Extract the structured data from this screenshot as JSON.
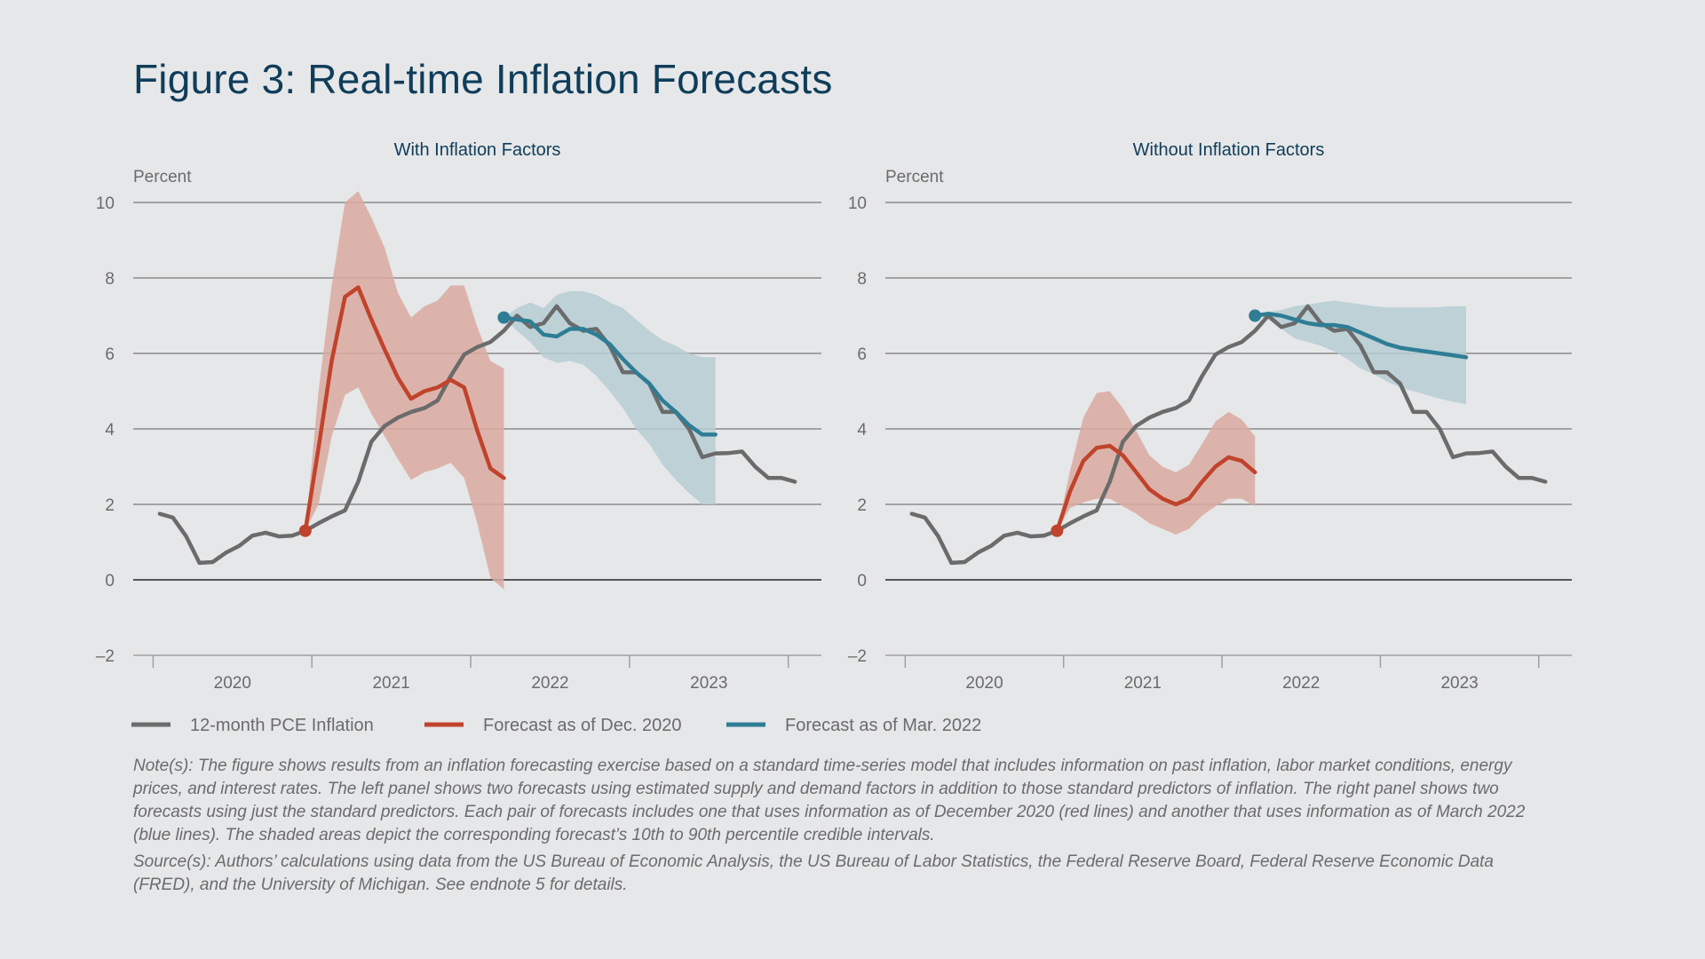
{
  "title": "Figure 3: Real-time Inflation Forecasts",
  "legend": {
    "pce": "12-month PCE Inflation",
    "dec2020": "Forecast as of Dec. 2020",
    "mar2022": "Forecast as of Mar. 2022"
  },
  "notes": {
    "note": "Note(s): The figure shows results from an inflation forecasting exercise based on a standard time-series model that includes information on past inflation, labor market conditions, energy prices, and interest rates. The left panel shows two forecasts using estimated supply and demand factors in addition to those standard predictors of inflation. The right panel shows two forecasts using just the standard predictors. Each pair of forecasts includes one that uses information as of December 2020 (red lines) and another that uses information as of March 2022 (blue lines). The shaded areas depict the corresponding forecast’s 10th to 90th percentile credible intervals.",
    "source": "Source(s): Authors’ calculations using data from the US Bureau of Economic Analysis, the US Bureau of Labor Statistics, the Federal Reserve Board, Federal Reserve Economic Data (FRED), and the University of Michigan. See endnote 5 for details."
  },
  "colors": {
    "pce": "#6b6b6b",
    "dec2020": "#c0432c",
    "dec2020_band": "#d9a9a0",
    "mar2022": "#2e7d95",
    "mar2022_band": "#b5ccd4",
    "grid": "#8c8c8c",
    "zero": "#555555"
  },
  "chart_data": [
    {
      "type": "line",
      "title": "With Inflation Factors",
      "ylabel": "Percent",
      "ylim": [
        -2,
        10
      ],
      "yticks": [
        10,
        8,
        6,
        4,
        2,
        0,
        -2
      ],
      "ytick_labels": [
        "10",
        "8",
        "6",
        "4",
        "2",
        "0",
        "–2"
      ],
      "xlim": [
        2019.833,
        2024.167
      ],
      "year_labels": [
        "2020",
        "2021",
        "2022",
        "2023"
      ],
      "series": [
        {
          "name": "12-month PCE Inflation",
          "color": "#6b6b6b",
          "x": [
            2020.0,
            2020.083,
            2020.167,
            2020.25,
            2020.333,
            2020.417,
            2020.5,
            2020.583,
            2020.667,
            2020.75,
            2020.833,
            2020.917,
            2021.0,
            2021.083,
            2021.167,
            2021.25,
            2021.333,
            2021.417,
            2021.5,
            2021.583,
            2021.667,
            2021.75,
            2021.833,
            2021.917,
            2022.0,
            2022.083,
            2022.167,
            2022.25,
            2022.333,
            2022.417,
            2022.5,
            2022.583,
            2022.667,
            2022.75,
            2022.833,
            2022.917,
            2023.0,
            2023.083,
            2023.167,
            2023.25,
            2023.333,
            2023.417,
            2023.5,
            2023.583,
            2023.667,
            2023.75,
            2023.833,
            2023.917,
            2024.0
          ],
          "y": [
            1.75,
            1.65,
            1.15,
            0.45,
            0.47,
            0.72,
            0.9,
            1.17,
            1.25,
            1.15,
            1.17,
            1.3,
            1.5,
            1.68,
            1.84,
            2.6,
            3.66,
            4.08,
            4.3,
            4.45,
            4.55,
            4.75,
            5.4,
            5.97,
            6.17,
            6.3,
            6.6,
            7.0,
            6.7,
            6.8,
            7.25,
            6.8,
            6.6,
            6.65,
            6.2,
            5.5,
            5.5,
            5.2,
            4.45,
            4.45,
            4.0,
            3.25,
            3.35,
            3.36,
            3.4,
            3.0,
            2.7,
            2.7,
            2.6
          ]
        },
        {
          "name": "Forecast as of Dec. 2020",
          "color": "#c0432c",
          "x": [
            2020.917,
            2021.0,
            2021.083,
            2021.167,
            2021.25,
            2021.333,
            2021.417,
            2021.5,
            2021.583,
            2021.667,
            2021.75,
            2021.833,
            2021.917,
            2022.0,
            2022.083,
            2022.167
          ],
          "y": [
            1.3,
            3.5,
            5.8,
            7.5,
            7.75,
            6.9,
            6.1,
            5.35,
            4.8,
            5.0,
            5.1,
            5.3,
            5.1,
            3.95,
            2.95,
            2.7
          ],
          "band_upper": [
            1.3,
            5.0,
            7.8,
            10.0,
            10.3,
            9.6,
            8.8,
            7.6,
            6.95,
            7.25,
            7.4,
            7.8,
            7.8,
            6.7,
            5.8,
            5.6
          ],
          "band_lower": [
            1.3,
            2.0,
            3.8,
            4.9,
            5.1,
            4.4,
            3.8,
            3.2,
            2.65,
            2.85,
            2.95,
            3.1,
            2.7,
            1.5,
            0.05,
            -0.25
          ]
        },
        {
          "name": "Forecast as of Mar. 2022",
          "color": "#2e7d95",
          "x": [
            2022.167,
            2022.25,
            2022.333,
            2022.417,
            2022.5,
            2022.583,
            2022.667,
            2022.75,
            2022.833,
            2022.917,
            2023.0,
            2023.083,
            2023.167,
            2023.25,
            2023.333,
            2023.417,
            2023.5
          ],
          "y": [
            6.95,
            6.9,
            6.85,
            6.5,
            6.45,
            6.65,
            6.65,
            6.5,
            6.25,
            5.85,
            5.5,
            5.2,
            4.75,
            4.45,
            4.1,
            3.85,
            3.85
          ],
          "band_upper": [
            6.95,
            7.2,
            7.35,
            7.2,
            7.55,
            7.65,
            7.65,
            7.55,
            7.35,
            7.2,
            6.9,
            6.6,
            6.35,
            6.2,
            6.0,
            5.9,
            5.9
          ],
          "band_lower": [
            6.95,
            6.6,
            6.3,
            5.9,
            5.75,
            5.8,
            5.7,
            5.4,
            5.0,
            4.55,
            4.0,
            3.6,
            3.05,
            2.65,
            2.3,
            2.0,
            2.0
          ]
        }
      ]
    },
    {
      "type": "line",
      "title": "Without Inflation Factors",
      "ylabel": "Percent",
      "ylim": [
        -2,
        10
      ],
      "yticks": [
        10,
        8,
        6,
        4,
        2,
        0,
        -2
      ],
      "ytick_labels": [
        "10",
        "8",
        "6",
        "4",
        "2",
        "0",
        "–2"
      ],
      "xlim": [
        2019.833,
        2024.167
      ],
      "year_labels": [
        "2020",
        "2021",
        "2022",
        "2023"
      ],
      "series": [
        {
          "name": "12-month PCE Inflation",
          "color": "#6b6b6b",
          "x": [
            2020.0,
            2020.083,
            2020.167,
            2020.25,
            2020.333,
            2020.417,
            2020.5,
            2020.583,
            2020.667,
            2020.75,
            2020.833,
            2020.917,
            2021.0,
            2021.083,
            2021.167,
            2021.25,
            2021.333,
            2021.417,
            2021.5,
            2021.583,
            2021.667,
            2021.75,
            2021.833,
            2021.917,
            2022.0,
            2022.083,
            2022.167,
            2022.25,
            2022.333,
            2022.417,
            2022.5,
            2022.583,
            2022.667,
            2022.75,
            2022.833,
            2022.917,
            2023.0,
            2023.083,
            2023.167,
            2023.25,
            2023.333,
            2023.417,
            2023.5,
            2023.583,
            2023.667,
            2023.75,
            2023.833,
            2023.917,
            2024.0
          ],
          "y": [
            1.75,
            1.65,
            1.15,
            0.45,
            0.47,
            0.72,
            0.9,
            1.17,
            1.25,
            1.15,
            1.17,
            1.3,
            1.5,
            1.68,
            1.84,
            2.6,
            3.66,
            4.08,
            4.3,
            4.45,
            4.55,
            4.75,
            5.4,
            5.97,
            6.17,
            6.3,
            6.6,
            7.0,
            6.7,
            6.8,
            7.25,
            6.8,
            6.6,
            6.65,
            6.2,
            5.5,
            5.5,
            5.2,
            4.45,
            4.45,
            4.0,
            3.25,
            3.35,
            3.36,
            3.4,
            3.0,
            2.7,
            2.7,
            2.6
          ]
        },
        {
          "name": "Forecast as of Dec. 2020",
          "color": "#c0432c",
          "x": [
            2020.917,
            2021.0,
            2021.083,
            2021.167,
            2021.25,
            2021.333,
            2021.417,
            2021.5,
            2021.583,
            2021.667,
            2021.75,
            2021.833,
            2021.917,
            2022.0,
            2022.083,
            2022.167
          ],
          "y": [
            1.3,
            2.35,
            3.15,
            3.5,
            3.55,
            3.3,
            2.85,
            2.4,
            2.15,
            2.0,
            2.15,
            2.6,
            3.0,
            3.25,
            3.15,
            2.85
          ],
          "band_upper": [
            1.3,
            2.9,
            4.3,
            4.95,
            5.0,
            4.55,
            3.95,
            3.3,
            3.0,
            2.85,
            3.05,
            3.6,
            4.2,
            4.45,
            4.25,
            3.8
          ],
          "band_lower": [
            1.3,
            1.9,
            2.05,
            2.15,
            2.15,
            1.95,
            1.75,
            1.5,
            1.35,
            1.2,
            1.35,
            1.7,
            1.95,
            2.15,
            2.15,
            1.95
          ]
        },
        {
          "name": "Forecast as of Mar. 2022",
          "color": "#2e7d95",
          "x": [
            2022.167,
            2022.25,
            2022.333,
            2022.417,
            2022.5,
            2022.583,
            2022.667,
            2022.75,
            2022.833,
            2022.917,
            2023.0,
            2023.083,
            2023.167,
            2023.25,
            2023.333,
            2023.417,
            2023.5
          ],
          "y": [
            7.0,
            7.05,
            7.0,
            6.9,
            6.8,
            6.75,
            6.75,
            6.7,
            6.55,
            6.4,
            6.25,
            6.15,
            6.1,
            6.05,
            6.0,
            5.95,
            5.9
          ],
          "band_upper": [
            7.0,
            7.1,
            7.15,
            7.25,
            7.3,
            7.35,
            7.4,
            7.35,
            7.3,
            7.25,
            7.22,
            7.22,
            7.22,
            7.22,
            7.23,
            7.25,
            7.25
          ],
          "band_lower": [
            7.0,
            6.9,
            6.65,
            6.4,
            6.3,
            6.2,
            6.05,
            5.85,
            5.6,
            5.45,
            5.25,
            5.1,
            5.0,
            4.9,
            4.8,
            4.72,
            4.65
          ]
        }
      ]
    }
  ]
}
